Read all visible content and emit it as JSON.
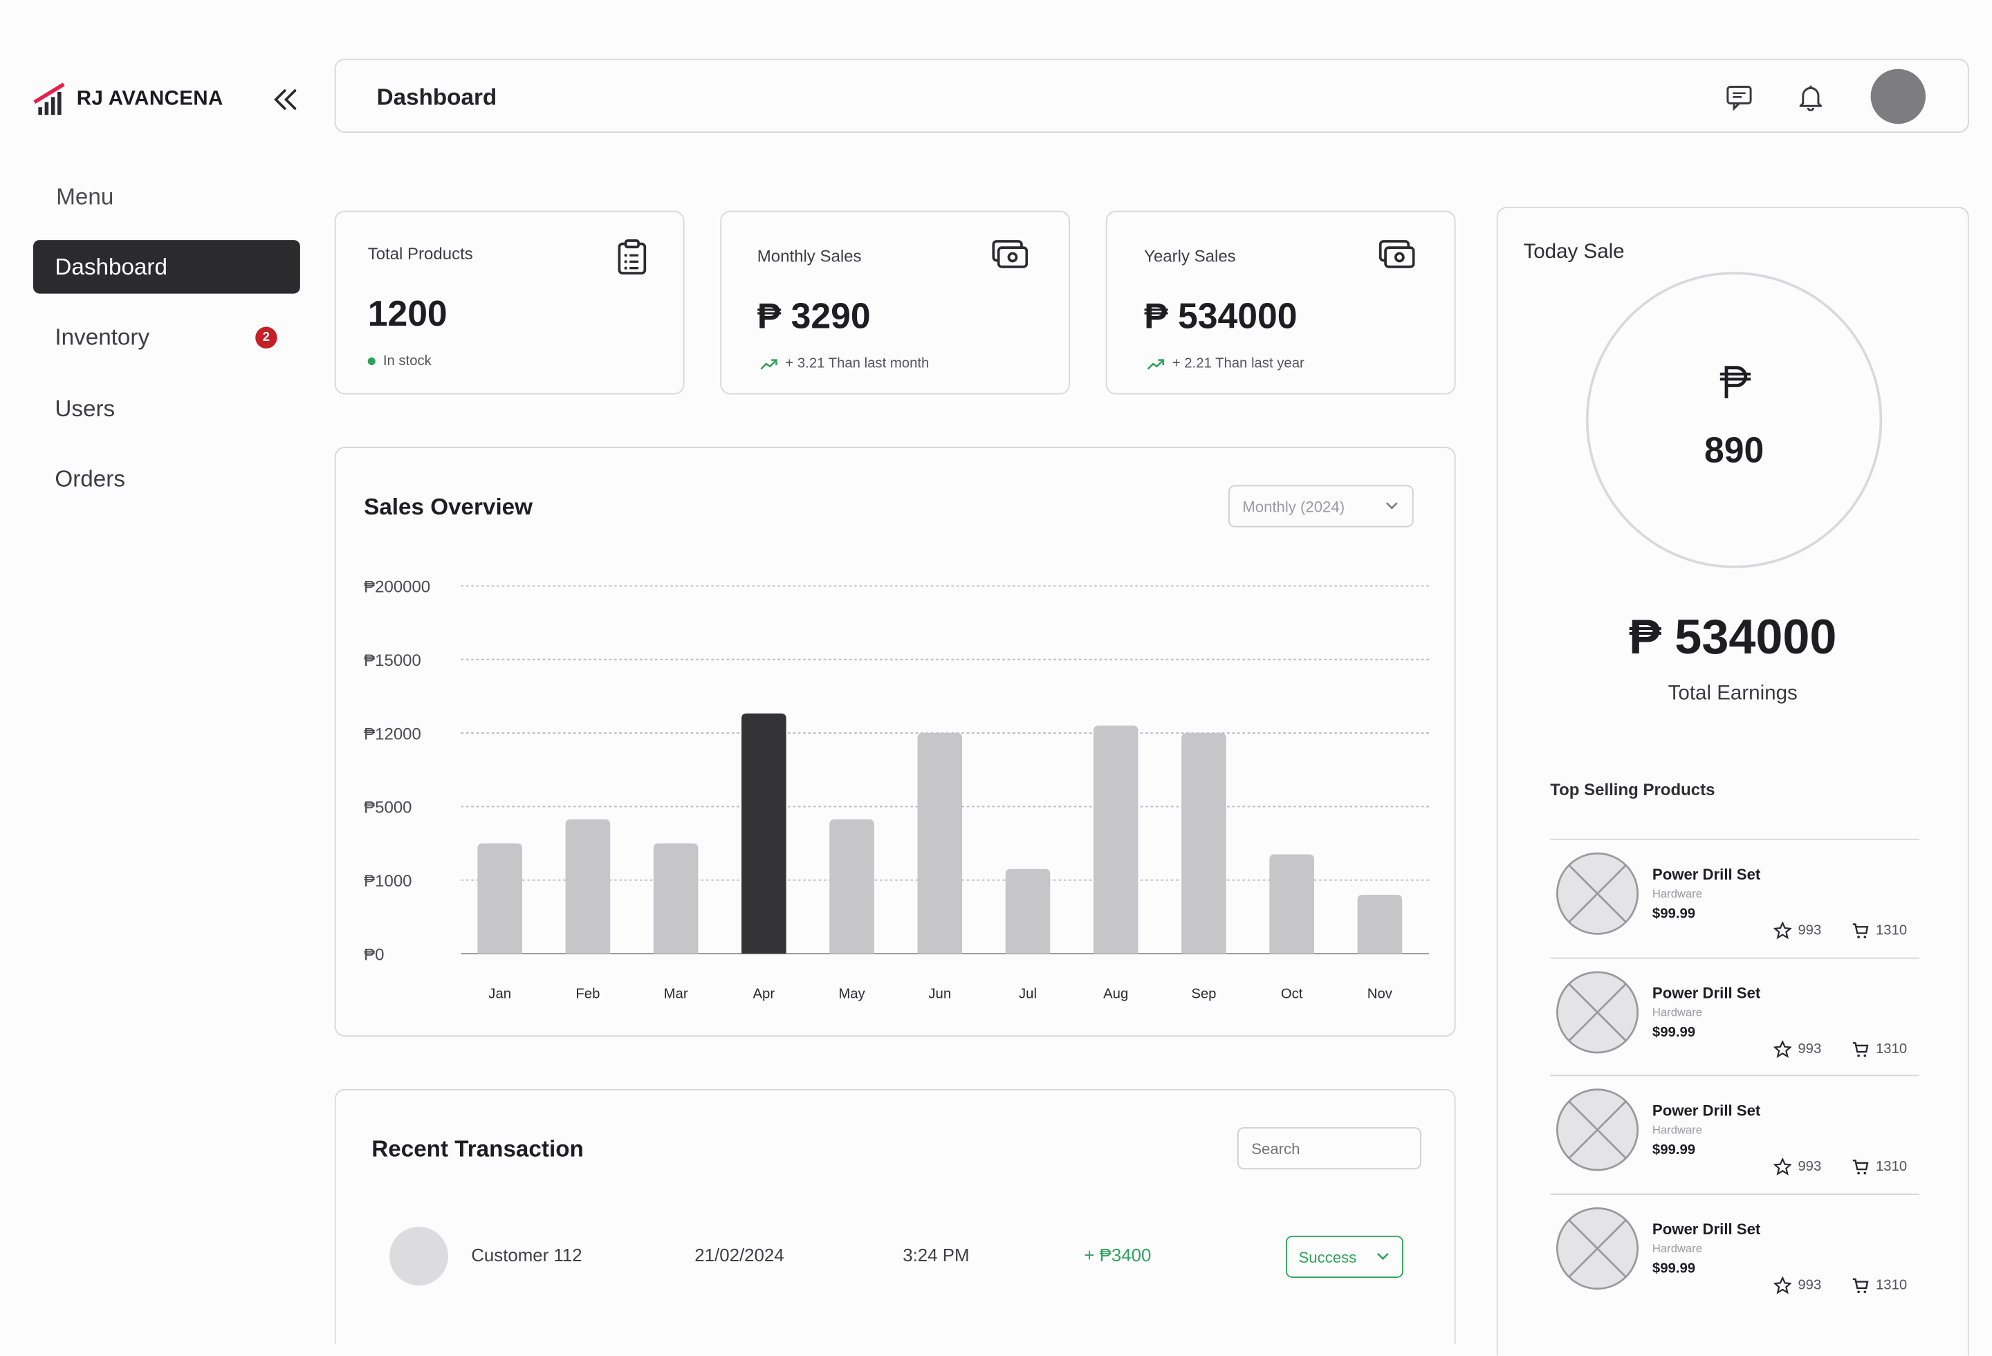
{
  "brand": {
    "name": "RJ AVANCENA",
    "logo_icon": "bar-chart-logo-icon",
    "accent": "#e3214b"
  },
  "sidebar": {
    "menu_title": "Menu",
    "items": [
      {
        "label": "Dashboard",
        "active": true,
        "badge": ""
      },
      {
        "label": "Inventory",
        "active": false,
        "badge": "2"
      },
      {
        "label": "Users",
        "active": false,
        "badge": ""
      },
      {
        "label": "Orders",
        "active": false,
        "badge": ""
      }
    ]
  },
  "header": {
    "title": "Dashboard",
    "icons": [
      "message-icon",
      "bell-icon"
    ]
  },
  "stats": [
    {
      "label": "Total Products",
      "value": "1200",
      "sub": "In stock",
      "icon": "clipboard-list-icon",
      "sub_color": "#2fa35a"
    },
    {
      "label": "Monthly Sales",
      "value": "3290",
      "currency": "₱",
      "sub": "+ 3.21 Than last month",
      "icon": "cash-icon"
    },
    {
      "label": "Yearly Sales",
      "value": "534000",
      "currency": "₱",
      "sub": "+ 2.21 Than last year",
      "icon": "cash-icon"
    }
  ],
  "sales_overview": {
    "title": "Sales Overview",
    "period_select": "Monthly (2024)"
  },
  "chart_data": {
    "type": "bar",
    "title": "Sales Overview",
    "categories": [
      "Jan",
      "Feb",
      "Mar",
      "Apr",
      "May",
      "Jun",
      "Jul",
      "Aug",
      "Sep",
      "Oct",
      "Nov"
    ],
    "y_ticks": [
      "₱0",
      "₱1000",
      "₱5000",
      "₱12000",
      "₱15000",
      "₱200000"
    ],
    "values": [
      3000,
      4300,
      3000,
      12800,
      4300,
      12000,
      1600,
      12300,
      12000,
      2400,
      800
    ],
    "highlight_index": 3,
    "bar_color": "#c6c5c7",
    "highlight_color": "#343335",
    "grid": true
  },
  "today_sale": {
    "title": "Today Sale",
    "currency": "₱",
    "value": "890",
    "total_earnings_value": "534000",
    "total_earnings_label": "Total Earnings"
  },
  "top_products": {
    "title": "Top Selling Products",
    "items": [
      {
        "name": "Power Drill Set",
        "category": "Hardware",
        "price": "$99.99",
        "rating": "993",
        "sold": "1310"
      },
      {
        "name": "Power Drill Set",
        "category": "Hardware",
        "price": "$99.99",
        "rating": "993",
        "sold": "1310"
      },
      {
        "name": "Power Drill Set",
        "category": "Hardware",
        "price": "$99.99",
        "rating": "993",
        "sold": "1310"
      },
      {
        "name": "Power Drill Set",
        "category": "Hardware",
        "price": "$99.99",
        "rating": "993",
        "sold": "1310"
      }
    ]
  },
  "transactions": {
    "title": "Recent Transaction",
    "search_placeholder": "Search",
    "rows": [
      {
        "customer": "Customer 112",
        "date": "21/02/2024",
        "time": "3:24 PM",
        "amount": "+ ₱3400",
        "status": "Success"
      }
    ]
  }
}
